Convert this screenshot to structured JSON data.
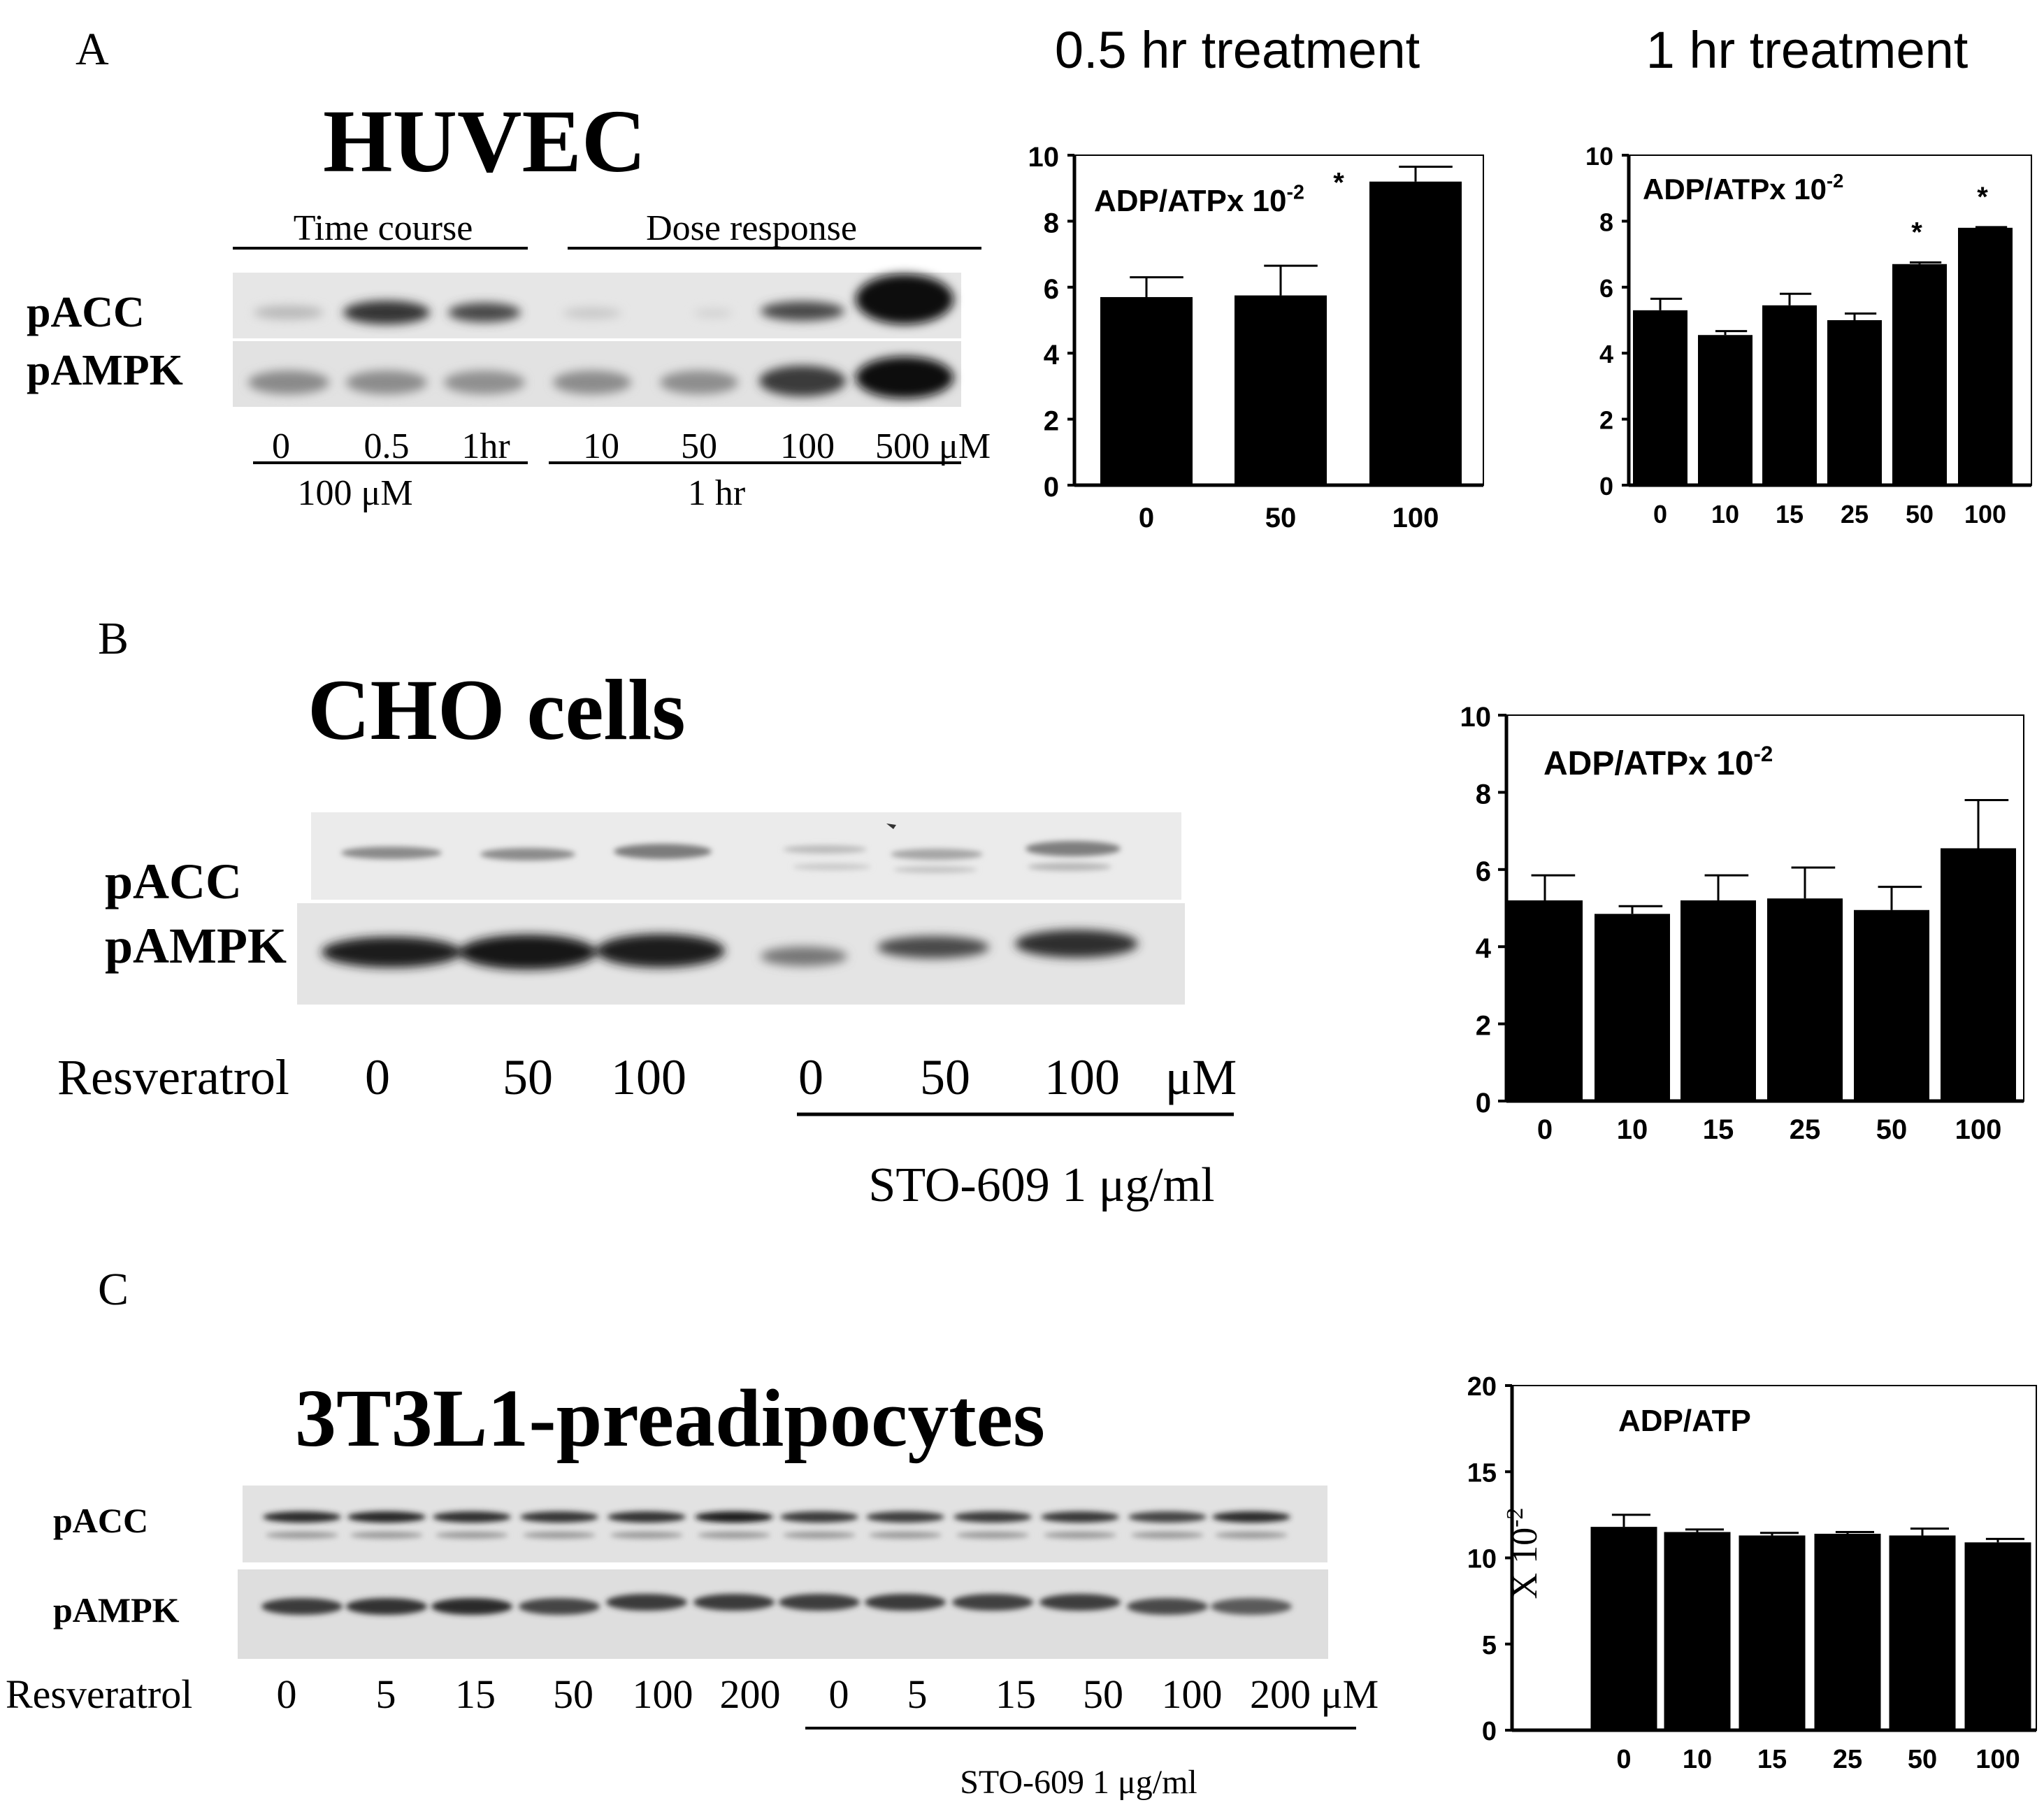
{
  "panels": {
    "A": {
      "letter": "A",
      "title": "HUVEC",
      "blot": {
        "group_labels": [
          "Time course",
          "Dose response"
        ],
        "row_labels": [
          "pACC",
          "pAMPK"
        ],
        "lanes": [
          "0",
          "0.5",
          "1hr",
          "10",
          "50",
          "100",
          "500 μM"
        ],
        "sublabels": [
          "100 μM",
          "1 hr"
        ]
      }
    },
    "B": {
      "letter": "B",
      "title": "CHO cells",
      "blot": {
        "row_labels": [
          "pACC",
          "pAMPK"
        ],
        "treatment": "Resveratrol",
        "lanes": [
          "0",
          "50",
          "100",
          "0",
          "50",
          "100",
          "μM"
        ],
        "sublabel": "STO-609 1 μg/ml"
      }
    },
    "C": {
      "letter": "C",
      "title": "3T3L1-preadipocytes",
      "blot": {
        "row_labels": [
          "pACC",
          "pAMPK"
        ],
        "treatment": "Resveratrol",
        "lanes": [
          "0",
          "5",
          "15",
          "50",
          "100",
          "200",
          "0",
          "5",
          "15",
          "50",
          "100",
          "200 μM"
        ],
        "sublabel": "STO-609 1 μg/ml"
      }
    }
  },
  "chart_data": [
    {
      "type": "bar",
      "title": "0.5 hr treatment",
      "annotation": "ADP/ATPx 10-2",
      "categories": [
        "0",
        "50",
        "100"
      ],
      "values": [
        5.7,
        5.75,
        9.2
      ],
      "errors": [
        0.6,
        0.9,
        0.45
      ],
      "significant": [
        false,
        false,
        true
      ],
      "ylim": [
        0,
        10
      ],
      "yticks": [
        "0",
        "2",
        "4",
        "6",
        "8",
        "10"
      ],
      "bar_color": "#000000",
      "star": "*"
    },
    {
      "type": "bar",
      "title": "1 hr treatment",
      "annotation": "ADP/ATPx 10-2",
      "categories": [
        "0",
        "10",
        "15",
        "25",
        "50",
        "100"
      ],
      "values": [
        5.3,
        4.55,
        5.45,
        5.0,
        6.7,
        7.8
      ],
      "errors": [
        0.35,
        0.12,
        0.35,
        0.2,
        0.05,
        0.02
      ],
      "significant": [
        false,
        false,
        false,
        false,
        true,
        true
      ],
      "ylim": [
        0,
        10
      ],
      "yticks": [
        "0",
        "2",
        "4",
        "6",
        "8",
        "10"
      ],
      "bar_color": "#000000",
      "star": "*"
    },
    {
      "type": "bar",
      "annotation": "ADP/ATPx 10-2",
      "categories": [
        "0",
        "10",
        "15",
        "25",
        "50",
        "100"
      ],
      "values": [
        5.2,
        4.85,
        5.2,
        5.25,
        4.95,
        6.55
      ],
      "errors": [
        0.65,
        0.2,
        0.65,
        0.8,
        0.6,
        1.25
      ],
      "ylim": [
        0,
        10
      ],
      "yticks": [
        "0",
        "2",
        "4",
        "6",
        "8",
        "10"
      ],
      "bar_color": "#000000"
    },
    {
      "type": "bar",
      "annotation": "ADP/ATP",
      "ylabel": "X 10-2",
      "categories": [
        "0",
        "10",
        "15",
        "25",
        "50",
        "100"
      ],
      "values": [
        11.8,
        11.5,
        11.3,
        11.4,
        11.3,
        10.9
      ],
      "errors": [
        0.7,
        0.15,
        0.15,
        0.1,
        0.4,
        0.2
      ],
      "ylim": [
        0,
        20
      ],
      "yticks": [
        "0",
        "5",
        "10",
        "15",
        "20"
      ],
      "bar_color": "#000000"
    }
  ]
}
